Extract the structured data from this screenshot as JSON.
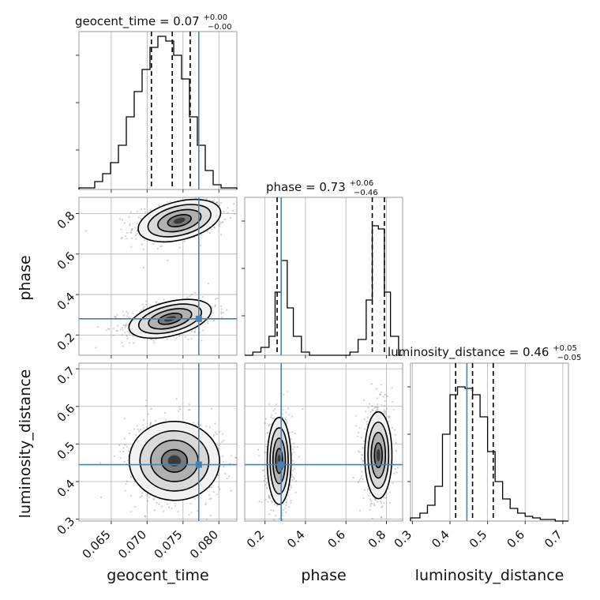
{
  "chart_data": {
    "type": "corner",
    "parameters": [
      {
        "name": "geocent_time",
        "axis_label": "geocent_time",
        "range": [
          0.0605,
          0.0825
        ],
        "ticks": [
          0.065,
          0.07,
          0.075,
          0.08
        ],
        "tick_labels": [
          "0.065",
          "0.070",
          "0.075",
          "0.080"
        ],
        "truth": 0.0772,
        "quantiles": [
          0.0706,
          0.0735,
          0.076
        ],
        "title": {
          "main": "geocent_time = 0.07",
          "sup": "+0.00",
          "sub": "−0.00"
        },
        "hist_bins": [
          0.0605,
          0.0627,
          0.0638,
          0.0649,
          0.066,
          0.0671,
          0.0682,
          0.0693,
          0.0704,
          0.0715,
          0.0726,
          0.0737,
          0.0748,
          0.0759,
          0.077,
          0.0781,
          0.0792,
          0.0803,
          0.0825
        ],
        "hist_values": [
          0.01,
          0.05,
          0.1,
          0.17,
          0.28,
          0.46,
          0.62,
          0.76,
          0.9,
          0.97,
          0.94,
          0.85,
          0.7,
          0.46,
          0.28,
          0.12,
          0.03,
          0.01
        ]
      },
      {
        "name": "phase",
        "axis_label": "phase",
        "range": [
          0.1,
          0.88
        ],
        "ticks": [
          0.2,
          0.4,
          0.6,
          0.8
        ],
        "tick_labels": [
          "0.2",
          "0.4",
          "0.6",
          "0.8"
        ],
        "truth": 0.28,
        "quantiles": [
          0.26,
          0.73,
          0.79
        ],
        "title": {
          "main": "phase = 0.73",
          "sup": "+0.06",
          "sub": "−0.46"
        },
        "hist_bins": [
          0.1,
          0.14,
          0.18,
          0.22,
          0.25,
          0.28,
          0.31,
          0.34,
          0.38,
          0.42,
          0.46,
          0.5,
          0.54,
          0.58,
          0.62,
          0.66,
          0.7,
          0.73,
          0.76,
          0.79,
          0.82,
          0.86,
          0.88
        ],
        "hist_values": [
          0.0,
          0.02,
          0.05,
          0.12,
          0.4,
          0.6,
          0.3,
          0.12,
          0.02,
          0.0,
          0.0,
          0.0,
          0.0,
          0.0,
          0.02,
          0.1,
          0.35,
          0.82,
          0.8,
          0.4,
          0.12,
          0.0
        ]
      },
      {
        "name": "luminosity_distance",
        "axis_label": "luminosity_distance",
        "range": [
          0.295,
          0.715
        ],
        "ticks": [
          0.3,
          0.4,
          0.5,
          0.6,
          0.7
        ],
        "tick_labels": [
          "0.3",
          "0.4",
          "0.5",
          "0.6",
          "0.7"
        ],
        "truth": 0.445,
        "quantiles": [
          0.415,
          0.46,
          0.515
        ],
        "title": {
          "main": "luminosity_distance = 0.46",
          "sup": "+0.05",
          "sub": "−0.05"
        },
        "hist_bins": [
          0.295,
          0.32,
          0.34,
          0.36,
          0.38,
          0.4,
          0.42,
          0.44,
          0.46,
          0.48,
          0.5,
          0.52,
          0.54,
          0.56,
          0.58,
          0.6,
          0.62,
          0.64,
          0.66,
          0.68,
          0.715
        ],
        "hist_values": [
          0.02,
          0.05,
          0.1,
          0.22,
          0.55,
          0.8,
          0.85,
          0.84,
          0.8,
          0.66,
          0.44,
          0.25,
          0.14,
          0.08,
          0.05,
          0.03,
          0.02,
          0.01,
          0.01,
          0.0
        ]
      }
    ],
    "pairs": [
      {
        "x": "geocent_time",
        "y": "phase",
        "clusters": [
          {
            "cx": 0.0745,
            "cy": 0.765,
            "sx": 0.0028,
            "sy": 0.045,
            "rho": 0.35
          },
          {
            "cx": 0.0732,
            "cy": 0.28,
            "sx": 0.0028,
            "sy": 0.04,
            "rho": 0.35
          }
        ]
      },
      {
        "x": "geocent_time",
        "y": "luminosity_distance",
        "clusters": [
          {
            "cx": 0.0738,
            "cy": 0.455,
            "sx": 0.003,
            "sy": 0.05,
            "rho": -0.05
          }
        ]
      },
      {
        "x": "phase",
        "y": "luminosity_distance",
        "clusters": [
          {
            "cx": 0.27,
            "cy": 0.455,
            "sx": 0.028,
            "sy": 0.055,
            "rho": 0.0
          },
          {
            "cx": 0.76,
            "cy": 0.47,
            "sx": 0.032,
            "sy": 0.055,
            "rho": 0.0
          }
        ]
      }
    ],
    "contour_levels_sigma": [
      0.6,
      1.1,
      1.6,
      2.1
    ],
    "grid": true
  }
}
